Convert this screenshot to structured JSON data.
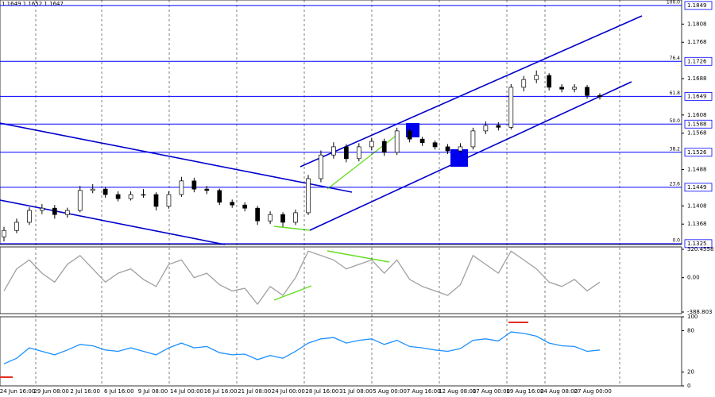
{
  "header": "1.1649 1.1652 1.1647",
  "xlabels": [
    "24 Jun 16:00",
    "29 Jun 08:00",
    "2 Jul 16:00",
    "6 Jul 16:00",
    "9 Jul 08:00",
    "14 Jul 00:00",
    "16 Jul 16:00",
    "21 Jul 08:00",
    "24 Jul 00:00",
    "28 Jul 16:00",
    "31 Jul 08:00",
    "5 Aug 00:00",
    "7 Aug 16:00",
    "12 Aug 08:00",
    "17 Aug 00:00",
    "19 Aug 16:00",
    "24 Aug 08:00",
    "27 Aug 00:00"
  ],
  "chart_data": [
    {
      "type": "candlestick",
      "ylim": [
        1.1323,
        1.1861
      ],
      "yticks": [
        1.1808,
        1.1768,
        1.1688,
        1.1608,
        1.1568,
        1.1488,
        1.1408,
        1.1368
      ],
      "fib_levels": [
        {
          "value": 1.1849,
          "pct": "100.0"
        },
        {
          "value": 1.1726,
          "pct": "76.4"
        },
        {
          "value": 1.1649,
          "pct": "61.8"
        },
        {
          "value": 1.1588,
          "pct": "50.0"
        },
        {
          "value": 1.1526,
          "pct": "38.2"
        },
        {
          "value": 1.1449,
          "pct": "23.6"
        },
        {
          "value": 1.1325,
          "pct": "0.0"
        }
      ],
      "fib_color": "#0000ff",
      "candles": [
        [
          1.134,
          1.1362,
          1.133,
          1.1354
        ],
        [
          1.1354,
          1.138,
          1.1348,
          1.1372
        ],
        [
          1.1372,
          1.1405,
          1.1366,
          1.1398
        ],
        [
          1.1398,
          1.1412,
          1.139,
          1.1403
        ],
        [
          1.1403,
          1.141,
          1.138,
          1.1389
        ],
        [
          1.1389,
          1.1404,
          1.1382,
          1.1398
        ],
        [
          1.1398,
          1.1452,
          1.1394,
          1.1442
        ],
        [
          1.1442,
          1.1456,
          1.1436,
          1.1445
        ],
        [
          1.1445,
          1.145,
          1.1426,
          1.1433
        ],
        [
          1.1433,
          1.144,
          1.1418,
          1.1424
        ],
        [
          1.1424,
          1.144,
          1.142,
          1.1433
        ],
        [
          1.1433,
          1.1445,
          1.1426,
          1.1433
        ],
        [
          1.1433,
          1.1438,
          1.1398,
          1.1407
        ],
        [
          1.1407,
          1.144,
          1.1402,
          1.1433
        ],
        [
          1.1433,
          1.1472,
          1.1428,
          1.1463
        ],
        [
          1.1463,
          1.147,
          1.1438,
          1.1445
        ],
        [
          1.1445,
          1.1452,
          1.1434,
          1.1442
        ],
        [
          1.1442,
          1.1446,
          1.141,
          1.1416
        ],
        [
          1.1416,
          1.1422,
          1.1404,
          1.141
        ],
        [
          1.141,
          1.1416,
          1.1396,
          1.1403
        ],
        [
          1.1403,
          1.1408,
          1.1366,
          1.1375
        ],
        [
          1.1375,
          1.1396,
          1.1368,
          1.1389
        ],
        [
          1.1389,
          1.1394,
          1.1362,
          1.1372
        ],
        [
          1.1372,
          1.14,
          1.1366,
          1.1393
        ],
        [
          1.1393,
          1.1476,
          1.1388,
          1.1468
        ],
        [
          1.1468,
          1.153,
          1.146,
          1.152
        ],
        [
          1.152,
          1.1548,
          1.1512,
          1.1538
        ],
        [
          1.1538,
          1.1544,
          1.1504,
          1.1512
        ],
        [
          1.1512,
          1.1546,
          1.1506,
          1.1538
        ],
        [
          1.1538,
          1.1558,
          1.153,
          1.155
        ],
        [
          1.155,
          1.1556,
          1.1518,
          1.1526
        ],
        [
          1.1526,
          1.158,
          1.152,
          1.1573
        ],
        [
          1.1573,
          1.1578,
          1.1548,
          1.1555
        ],
        [
          1.1555,
          1.156,
          1.154,
          1.1547
        ],
        [
          1.1547,
          1.1552,
          1.1532,
          1.1538
        ],
        [
          1.1538,
          1.1544,
          1.1522,
          1.1529
        ],
        [
          1.1529,
          1.1546,
          1.1524,
          1.1538
        ],
        [
          1.1538,
          1.158,
          1.1532,
          1.1573
        ],
        [
          1.1573,
          1.1594,
          1.1566,
          1.1585
        ],
        [
          1.1585,
          1.1592,
          1.1574,
          1.1581
        ],
        [
          1.1581,
          1.1676,
          1.1576,
          1.1669
        ],
        [
          1.1669,
          1.1694,
          1.166,
          1.1686
        ],
        [
          1.1686,
          1.1706,
          1.1678,
          1.1695
        ],
        [
          1.1695,
          1.17,
          1.1662,
          1.1669
        ],
        [
          1.1669,
          1.1676,
          1.1658,
          1.1665
        ],
        [
          1.1665,
          1.1676,
          1.1658,
          1.1669
        ],
        [
          1.1669,
          1.1674,
          1.1644,
          1.1651
        ],
        [
          1.1651,
          1.1656,
          1.1642,
          1.1648
        ]
      ]
    },
    {
      "type": "line",
      "ylim": [
        -406.8,
        347.4
      ],
      "yticks": [
        320.4558,
        {
          "value": 0,
          "label": "0.00"
        },
        -388.803
      ],
      "color": "#a0a0a0",
      "values": [
        -150,
        100,
        200,
        50,
        -50,
        150,
        250,
        100,
        -50,
        50,
        100,
        -20,
        -100,
        150,
        200,
        0,
        50,
        -80,
        -150,
        -120,
        -300,
        -100,
        -200,
        0,
        300,
        250,
        200,
        100,
        150,
        200,
        50,
        200,
        -20,
        -100,
        -150,
        -200,
        -80,
        250,
        150,
        50,
        300,
        200,
        100,
        -50,
        -100,
        -20,
        -150,
        -50
      ]
    },
    {
      "type": "line",
      "ylim": [
        0,
        100
      ],
      "yticks": [
        100,
        80,
        20,
        0
      ],
      "color": "#1e90ff",
      "values": [
        32,
        40,
        55,
        50,
        45,
        52,
        60,
        58,
        52,
        50,
        55,
        50,
        45,
        55,
        62,
        55,
        57,
        48,
        45,
        46,
        38,
        44,
        40,
        50,
        62,
        68,
        70,
        62,
        66,
        68,
        60,
        66,
        57,
        55,
        52,
        50,
        54,
        66,
        68,
        65,
        78,
        76,
        72,
        62,
        58,
        57,
        50,
        52
      ]
    }
  ]
}
